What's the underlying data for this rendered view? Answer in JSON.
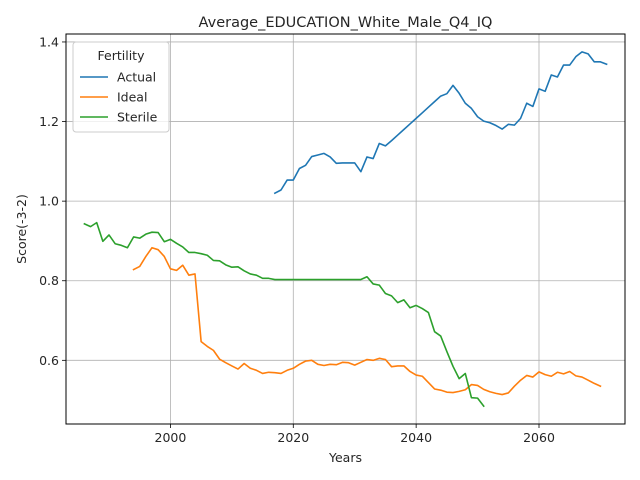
{
  "chart_data": {
    "type": "line",
    "title": "Average_EDUCATION_White_Male_Q4_IQ",
    "xlabel": "Years",
    "ylabel": "Score(-3-2)",
    "xlim": [
      1983,
      2074
    ],
    "ylim": [
      0.44,
      1.42
    ],
    "xticks": [
      2000,
      2020,
      2040,
      2060
    ],
    "yticks": [
      0.6,
      0.8,
      1.0,
      1.2,
      1.4
    ],
    "xtick_labels": [
      "2000",
      "2020",
      "2040",
      "2060"
    ],
    "ytick_labels": [
      "0.6",
      "0.8",
      "1.0",
      "1.2",
      "1.4"
    ],
    "grid": true,
    "legend": {
      "title": "Fertility",
      "position": "top-left"
    },
    "series": [
      {
        "name": "Actual",
        "color": "#1f77b4",
        "points": [
          [
            2017,
            1.02
          ],
          [
            2018,
            1.028
          ],
          [
            2019,
            1.053
          ],
          [
            2020,
            1.053
          ],
          [
            2021,
            1.082
          ],
          [
            2022,
            1.09
          ],
          [
            2023,
            1.112
          ],
          [
            2024,
            1.116
          ],
          [
            2025,
            1.12
          ],
          [
            2026,
            1.111
          ],
          [
            2027,
            1.095
          ],
          [
            2028,
            1.096
          ],
          [
            2029,
            1.096
          ],
          [
            2030,
            1.096
          ],
          [
            2031,
            1.074
          ],
          [
            2032,
            1.111
          ],
          [
            2033,
            1.107
          ],
          [
            2034,
            1.145
          ],
          [
            2035,
            1.139
          ],
          [
            2036,
            1.152
          ],
          [
            2037,
            1.166
          ],
          [
            2038,
            1.18
          ],
          [
            2039,
            1.194
          ],
          [
            2040,
            1.208
          ],
          [
            2041,
            1.222
          ],
          [
            2042,
            1.236
          ],
          [
            2043,
            1.25
          ],
          [
            2044,
            1.264
          ],
          [
            2045,
            1.27
          ],
          [
            2046,
            1.291
          ],
          [
            2047,
            1.271
          ],
          [
            2048,
            1.246
          ],
          [
            2049,
            1.233
          ],
          [
            2050,
            1.212
          ],
          [
            2051,
            1.201
          ],
          [
            2052,
            1.197
          ],
          [
            2053,
            1.19
          ],
          [
            2054,
            1.181
          ],
          [
            2055,
            1.193
          ],
          [
            2056,
            1.191
          ],
          [
            2057,
            1.208
          ],
          [
            2058,
            1.246
          ],
          [
            2059,
            1.238
          ],
          [
            2060,
            1.282
          ],
          [
            2061,
            1.276
          ],
          [
            2062,
            1.317
          ],
          [
            2063,
            1.312
          ],
          [
            2064,
            1.342
          ],
          [
            2065,
            1.342
          ],
          [
            2066,
            1.363
          ],
          [
            2067,
            1.375
          ],
          [
            2068,
            1.37
          ],
          [
            2069,
            1.35
          ],
          [
            2070,
            1.35
          ],
          [
            2071,
            1.344
          ]
        ]
      },
      {
        "name": "Ideal",
        "color": "#ff7f0e",
        "points": [
          [
            1994,
            0.828
          ],
          [
            1995,
            0.836
          ],
          [
            1996,
            0.861
          ],
          [
            1997,
            0.883
          ],
          [
            1998,
            0.878
          ],
          [
            1999,
            0.861
          ],
          [
            2000,
            0.83
          ],
          [
            2001,
            0.826
          ],
          [
            2002,
            0.839
          ],
          [
            2003,
            0.814
          ],
          [
            2004,
            0.817
          ],
          [
            2005,
            0.647
          ],
          [
            2006,
            0.635
          ],
          [
            2007,
            0.625
          ],
          [
            2008,
            0.603
          ],
          [
            2009,
            0.594
          ],
          [
            2010,
            0.586
          ],
          [
            2011,
            0.578
          ],
          [
            2012,
            0.592
          ],
          [
            2013,
            0.58
          ],
          [
            2014,
            0.575
          ],
          [
            2015,
            0.567
          ],
          [
            2016,
            0.57
          ],
          [
            2017,
            0.569
          ],
          [
            2018,
            0.567
          ],
          [
            2019,
            0.575
          ],
          [
            2020,
            0.58
          ],
          [
            2021,
            0.59
          ],
          [
            2022,
            0.598
          ],
          [
            2023,
            0.6
          ],
          [
            2024,
            0.59
          ],
          [
            2025,
            0.587
          ],
          [
            2026,
            0.59
          ],
          [
            2027,
            0.589
          ],
          [
            2028,
            0.595
          ],
          [
            2029,
            0.594
          ],
          [
            2030,
            0.588
          ],
          [
            2031,
            0.595
          ],
          [
            2032,
            0.602
          ],
          [
            2033,
            0.6
          ],
          [
            2034,
            0.605
          ],
          [
            2035,
            0.602
          ],
          [
            2036,
            0.584
          ],
          [
            2037,
            0.586
          ],
          [
            2038,
            0.586
          ],
          [
            2039,
            0.572
          ],
          [
            2040,
            0.563
          ],
          [
            2041,
            0.56
          ],
          [
            2042,
            0.544
          ],
          [
            2043,
            0.528
          ],
          [
            2044,
            0.525
          ],
          [
            2045,
            0.52
          ],
          [
            2046,
            0.519
          ],
          [
            2047,
            0.522
          ],
          [
            2048,
            0.526
          ],
          [
            2049,
            0.539
          ],
          [
            2050,
            0.537
          ],
          [
            2051,
            0.527
          ],
          [
            2052,
            0.521
          ],
          [
            2053,
            0.517
          ],
          [
            2054,
            0.514
          ],
          [
            2055,
            0.518
          ],
          [
            2056,
            0.535
          ],
          [
            2057,
            0.55
          ],
          [
            2058,
            0.562
          ],
          [
            2059,
            0.558
          ],
          [
            2060,
            0.571
          ],
          [
            2061,
            0.564
          ],
          [
            2062,
            0.56
          ],
          [
            2063,
            0.57
          ],
          [
            2064,
            0.566
          ],
          [
            2065,
            0.572
          ],
          [
            2066,
            0.561
          ],
          [
            2067,
            0.558
          ],
          [
            2068,
            0.55
          ],
          [
            2069,
            0.542
          ],
          [
            2070,
            0.535
          ]
        ]
      },
      {
        "name": "Sterile",
        "color": "#2ca02c",
        "points": [
          [
            1986,
            0.943
          ],
          [
            1987,
            0.936
          ],
          [
            1988,
            0.946
          ],
          [
            1989,
            0.899
          ],
          [
            1990,
            0.915
          ],
          [
            1991,
            0.893
          ],
          [
            1992,
            0.889
          ],
          [
            1993,
            0.883
          ],
          [
            1994,
            0.91
          ],
          [
            1995,
            0.907
          ],
          [
            1996,
            0.917
          ],
          [
            1997,
            0.922
          ],
          [
            1998,
            0.921
          ],
          [
            1999,
            0.898
          ],
          [
            2000,
            0.904
          ],
          [
            2001,
            0.894
          ],
          [
            2002,
            0.885
          ],
          [
            2003,
            0.871
          ],
          [
            2004,
            0.871
          ],
          [
            2005,
            0.868
          ],
          [
            2006,
            0.864
          ],
          [
            2007,
            0.851
          ],
          [
            2008,
            0.85
          ],
          [
            2009,
            0.84
          ],
          [
            2010,
            0.834
          ],
          [
            2011,
            0.835
          ],
          [
            2012,
            0.825
          ],
          [
            2013,
            0.817
          ],
          [
            2014,
            0.814
          ],
          [
            2015,
            0.806
          ],
          [
            2016,
            0.806
          ],
          [
            2017,
            0.803
          ],
          [
            2018,
            0.803
          ],
          [
            2019,
            0.803
          ],
          [
            2020,
            0.803
          ],
          [
            2021,
            0.803
          ],
          [
            2022,
            0.803
          ],
          [
            2023,
            0.803
          ],
          [
            2024,
            0.803
          ],
          [
            2025,
            0.803
          ],
          [
            2026,
            0.803
          ],
          [
            2027,
            0.803
          ],
          [
            2028,
            0.803
          ],
          [
            2029,
            0.803
          ],
          [
            2030,
            0.803
          ],
          [
            2031,
            0.803
          ],
          [
            2032,
            0.81
          ],
          [
            2033,
            0.792
          ],
          [
            2034,
            0.789
          ],
          [
            2035,
            0.768
          ],
          [
            2036,
            0.762
          ],
          [
            2037,
            0.745
          ],
          [
            2038,
            0.752
          ],
          [
            2039,
            0.732
          ],
          [
            2040,
            0.738
          ],
          [
            2041,
            0.73
          ],
          [
            2042,
            0.72
          ],
          [
            2043,
            0.672
          ],
          [
            2044,
            0.661
          ],
          [
            2045,
            0.622
          ],
          [
            2046,
            0.585
          ],
          [
            2047,
            0.554
          ],
          [
            2048,
            0.567
          ],
          [
            2049,
            0.506
          ],
          [
            2050,
            0.505
          ],
          [
            2051,
            0.485
          ]
        ]
      }
    ]
  }
}
